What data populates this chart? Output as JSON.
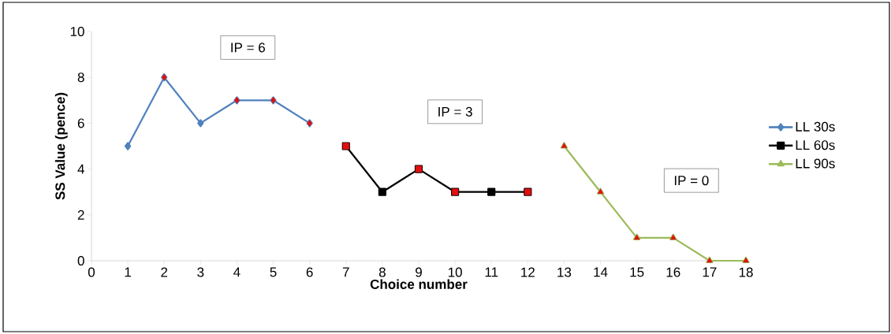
{
  "chart_data": {
    "type": "line",
    "xlabel": "Choice number",
    "ylabel": "SS Value (pence)",
    "xlim": [
      0,
      18
    ],
    "ylim": [
      0,
      10
    ],
    "xticks": [
      0,
      1,
      2,
      3,
      4,
      5,
      6,
      7,
      8,
      9,
      10,
      11,
      12,
      13,
      14,
      15,
      16,
      17,
      18
    ],
    "yticks": [
      0,
      2,
      4,
      6,
      8,
      10
    ],
    "grid": false,
    "legend": "right",
    "series": [
      {
        "name": "LL 30s",
        "color": "#4f81bd",
        "marker": "diamond",
        "x": [
          1,
          2,
          3,
          4,
          5,
          6
        ],
        "values": [
          5,
          8,
          6,
          7,
          7,
          6
        ],
        "colors": [
          "#4f81bd",
          "#e01010",
          "#4f81bd",
          "#e01010",
          "#e01010",
          "#e01010"
        ]
      },
      {
        "name": "LL 60s",
        "color": "#000000",
        "marker": "square",
        "x": [
          7,
          8,
          9,
          10,
          11,
          12
        ],
        "values": [
          5,
          3,
          4,
          3,
          3,
          3
        ],
        "colors": [
          "#e01010",
          "#000000",
          "#e01010",
          "#e01010",
          "#000000",
          "#e01010"
        ]
      },
      {
        "name": "LL 90s",
        "color": "#9bbb59",
        "marker": "triangle",
        "x": [
          13,
          14,
          15,
          16,
          17,
          18
        ],
        "values": [
          5,
          3,
          1,
          1,
          0,
          0
        ],
        "colors": [
          "#e01010",
          "#e01010",
          "#e01010",
          "#e01010",
          "#e01010",
          "#e01010"
        ]
      }
    ],
    "annotations": [
      "IP = 6",
      "IP = 3",
      "IP = 0"
    ]
  }
}
